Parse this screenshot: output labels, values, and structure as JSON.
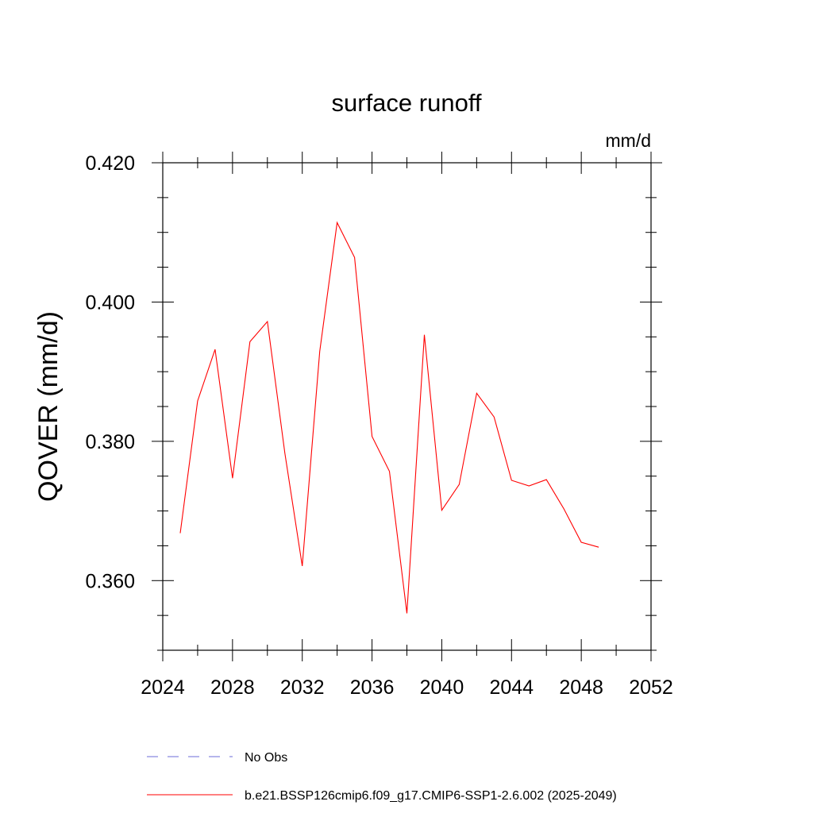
{
  "chart_data": {
    "type": "line",
    "title": "surface runoff",
    "units_label": "mm/d",
    "ylabel": "QOVER  (mm/d)",
    "xlabel": "",
    "xlim": [
      2024,
      2052
    ],
    "ylim": [
      0.35,
      0.42
    ],
    "x_ticks": [
      2024,
      2028,
      2032,
      2036,
      2040,
      2044,
      2048,
      2052
    ],
    "x_tick_labels": [
      "2024",
      "2028",
      "2032",
      "2036",
      "2040",
      "2044",
      "2048",
      "2052"
    ],
    "y_ticks": [
      0.36,
      0.38,
      0.4,
      0.42
    ],
    "y_tick_labels": [
      "0.360",
      "0.380",
      "0.400",
      "0.420"
    ],
    "grid": false,
    "legend_position": "bottom",
    "series": [
      {
        "name": "b.e21.BSSP126cmip6.f09_g17.CMIP6-SSP1-2.6.002 (2025-2049)",
        "color": "#ff0000",
        "style": "solid",
        "x": [
          2025,
          2026,
          2027,
          2028,
          2029,
          2030,
          2031,
          2032,
          2033,
          2034,
          2035,
          2036,
          2037,
          2038,
          2039,
          2040,
          2041,
          2042,
          2043,
          2044,
          2045,
          2046,
          2047,
          2048,
          2049
        ],
        "values": [
          0.3668,
          0.3858,
          0.3932,
          0.3747,
          0.3943,
          0.3972,
          0.3783,
          0.3621,
          0.3929,
          0.4114,
          0.4064,
          0.3807,
          0.3757,
          0.3553,
          0.3953,
          0.3701,
          0.3738,
          0.3869,
          0.3835,
          0.3744,
          0.3736,
          0.3745,
          0.3703,
          0.3655,
          0.3648
        ]
      }
    ],
    "legend": [
      {
        "label": "No Obs",
        "color": "#6b6bd8",
        "style": "dashed"
      },
      {
        "label": "b.e21.BSSP126cmip6.f09_g17.CMIP6-SSP1-2.6.002 (2025-2049)",
        "color": "#ff0000",
        "style": "solid"
      }
    ]
  }
}
